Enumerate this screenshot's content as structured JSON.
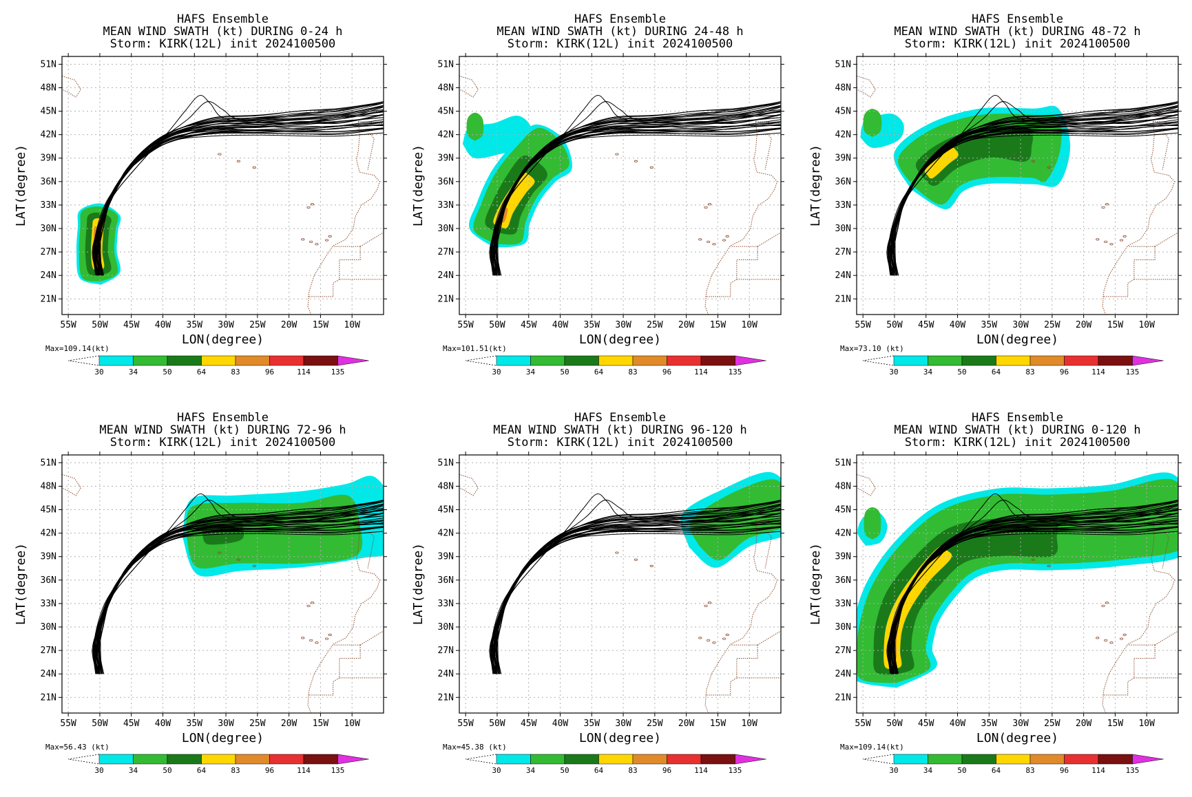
{
  "figure": {
    "axes": {
      "xlabel": "LON(degree)",
      "ylabel": "LAT(degree)",
      "xticks": [
        "55W",
        "50W",
        "45W",
        "40W",
        "35W",
        "30W",
        "25W",
        "20W",
        "15W",
        "10W"
      ],
      "yticks": [
        "51N",
        "48N",
        "45N",
        "42N",
        "39N",
        "36N",
        "33N",
        "30N",
        "27N",
        "24N",
        "21N"
      ],
      "lon_range": [
        -56,
        -5
      ],
      "lat_range": [
        19,
        52
      ]
    },
    "colorbar": {
      "levels": [
        "30",
        "34",
        "50",
        "64",
        "83",
        "96",
        "114",
        "135"
      ],
      "colors": [
        "#00e8e8",
        "#33bb33",
        "#1a7a1a",
        "#ffd700",
        "#e08a2a",
        "#e83030",
        "#7a1010",
        "#e030e0"
      ]
    },
    "panels": [
      {
        "title1": "HAFS Ensemble",
        "title2": "MEAN WIND SWATH (kt) DURING  0-24 h",
        "title3": "Storm: KIRK(12L) init 2024100500",
        "max_label": "Max=109.14(kt)"
      },
      {
        "title1": "HAFS Ensemble",
        "title2": "MEAN WIND SWATH (kt) DURING 24-48 h",
        "title3": "Storm: KIRK(12L) init 2024100500",
        "max_label": "Max=101.51(kt)"
      },
      {
        "title1": "HAFS Ensemble",
        "title2": "MEAN WIND SWATH (kt) DURING 48-72 h",
        "title3": "Storm: KIRK(12L) init 2024100500",
        "max_label": "Max=73.10 (kt)"
      },
      {
        "title1": "HAFS Ensemble",
        "title2": "MEAN WIND SWATH (kt) DURING 72-96 h",
        "title3": "Storm: KIRK(12L) init 2024100500",
        "max_label": "Max=56.43 (kt)"
      },
      {
        "title1": "HAFS Ensemble",
        "title2": "MEAN WIND SWATH (kt) DURING 96-120 h",
        "title3": "Storm: KIRK(12L) init 2024100500",
        "max_label": "Max=45.38 (kt)"
      },
      {
        "title1": "HAFS Ensemble",
        "title2": "MEAN WIND SWATH (kt) DURING 0-120 h",
        "title3": "Storm: KIRK(12L) init 2024100500",
        "max_label": "Max=109.14(kt)"
      }
    ],
    "track": [
      [
        -50,
        24
      ],
      [
        -50.5,
        27
      ],
      [
        -50,
        30
      ],
      [
        -48.5,
        33.5
      ],
      [
        -46,
        37
      ],
      [
        -42.5,
        40
      ],
      [
        -38,
        42
      ],
      [
        -32,
        43
      ],
      [
        -25,
        43.3
      ],
      [
        -18,
        43.5
      ],
      [
        -12,
        43.8
      ],
      [
        -5,
        44.5
      ]
    ],
    "track_outliers": [
      [
        [
          -50,
          24
        ],
        [
          -50.5,
          27
        ],
        [
          -50,
          30
        ],
        [
          -48,
          34
        ],
        [
          -44,
          38
        ],
        [
          -39.5,
          42
        ],
        [
          -36.5,
          45
        ],
        [
          -34.2,
          47
        ],
        [
          -32.5,
          46
        ],
        [
          -30,
          44
        ],
        [
          -22,
          43.5
        ],
        [
          -12,
          44
        ],
        [
          -5,
          45
        ]
      ],
      [
        [
          -50,
          24
        ],
        [
          -50.5,
          27
        ],
        [
          -50,
          30
        ],
        [
          -48,
          34
        ],
        [
          -44,
          38
        ],
        [
          -40,
          41.5
        ],
        [
          -36,
          44
        ],
        [
          -33,
          46.2
        ],
        [
          -30.5,
          45.2
        ],
        [
          -28,
          44
        ],
        [
          -20,
          43.5
        ],
        [
          -12,
          44
        ],
        [
          -5,
          45.5
        ]
      ]
    ],
    "swaths": [
      [
        {
          "level": 30,
          "center": [
            [
              -50,
              24
            ],
            [
              -50.5,
              27
            ],
            [
              -50.3,
              30
            ],
            [
              -50,
              32
            ]
          ],
          "lon_width": 3.2,
          "lat_pad": 1.2
        },
        {
          "level": 34,
          "center": [
            [
              -50,
              24
            ],
            [
              -50.5,
              27
            ],
            [
              -50.3,
              30
            ],
            [
              -50,
              32
            ]
          ],
          "lon_width": 2.8,
          "lat_pad": 0.8
        },
        {
          "level": 50,
          "center": [
            [
              -50,
              24.5
            ],
            [
              -50.5,
              27
            ],
            [
              -50.3,
              30
            ],
            [
              -50,
              31.5
            ]
          ],
          "lon_width": 1.8,
          "lat_pad": 0.5
        },
        {
          "level": 64,
          "center": [
            [
              -50.2,
              25
            ],
            [
              -50.5,
              27
            ],
            [
              -50.3,
              30
            ],
            [
              -50.1,
              31
            ]
          ],
          "lon_width": 0.9,
          "lat_pad": 0.3
        },
        {
          "level": 83,
          "center": [
            [
              -50.3,
              25.5
            ],
            [
              -50.5,
              27.5
            ],
            [
              -50.4,
              30
            ]
          ],
          "lon_width": 0.5,
          "lat_pad": 0.2
        },
        {
          "level": 96,
          "center": [
            [
              -50.4,
              27
            ],
            [
              -50.5,
              28.5
            ]
          ],
          "lon_width": 0.25,
          "lat_pad": 0.1
        }
      ],
      [
        {
          "level": 30,
          "center": [
            [
              -50,
              29
            ],
            [
              -49,
              32
            ],
            [
              -47,
              35.5
            ],
            [
              -44,
              38.5
            ],
            [
              -41,
              40.5
            ]
          ],
          "lon_width": 4.5,
          "lat_pad": 1.5
        },
        {
          "level": 30,
          "center": [
            [
              -54,
              41
            ],
            [
              -50,
              41.5
            ],
            [
              -46,
              42.5
            ]
          ],
          "lon_width": 2.5,
          "lat_pad": 1.2
        },
        {
          "level": 34,
          "center": [
            [
              -50,
              29
            ],
            [
              -49,
              32
            ],
            [
              -47,
              35.5
            ],
            [
              -44,
              38.5
            ],
            [
              -41,
              40.5
            ]
          ],
          "lon_width": 3.8,
          "lat_pad": 1.0
        },
        {
          "level": 34,
          "center": [
            [
              -53.5,
              42
            ],
            [
              -53.5,
              44
            ]
          ],
          "lon_width": 1.2,
          "lat_pad": 0.8
        },
        {
          "level": 50,
          "center": [
            [
              -49.5,
              30
            ],
            [
              -48.5,
              32.5
            ],
            [
              -46.5,
              35.5
            ],
            [
              -44,
              38
            ]
          ],
          "lon_width": 2.5,
          "lat_pad": 0.6
        },
        {
          "level": 64,
          "center": [
            [
              -49.5,
              30.5
            ],
            [
              -48.5,
              32.5
            ],
            [
              -46.5,
              35
            ],
            [
              -45,
              36.5
            ]
          ],
          "lon_width": 1.2,
          "lat_pad": 0.3
        },
        {
          "level": 83,
          "center": [
            [
              -49.3,
              31
            ],
            [
              -48.8,
              32.5
            ]
          ],
          "lon_width": 0.5,
          "lat_pad": 0.2
        }
      ],
      [
        {
          "level": 30,
          "center": [
            [
              -46,
              36
            ],
            [
              -42,
              39
            ],
            [
              -36,
              40.5
            ],
            [
              -28,
              40.5
            ],
            [
              -24,
              40.5
            ]
          ],
          "lon_width": 6.0,
          "lat_pad": 1.5
        },
        {
          "level": 30,
          "center": [
            [
              -54,
              42
            ],
            [
              -50,
              43
            ]
          ],
          "lon_width": 2.2,
          "lat_pad": 1.2
        },
        {
          "level": 34,
          "center": [
            [
              -46,
              36
            ],
            [
              -42,
              39
            ],
            [
              -36,
              40.5
            ],
            [
              -28,
              40.5
            ],
            [
              -25,
              40
            ]
          ],
          "lon_width": 5.0,
          "lat_pad": 1.0
        },
        {
          "level": 34,
          "center": [
            [
              -53.5,
              42.5
            ],
            [
              -53.5,
              44.5
            ]
          ],
          "lon_width": 1.3,
          "lat_pad": 0.8
        },
        {
          "level": 50,
          "center": [
            [
              -45,
              37
            ],
            [
              -41,
              39.5
            ],
            [
              -35,
              41
            ],
            [
              -29,
              40.5
            ]
          ],
          "lon_width": 2.4,
          "lat_pad": 0.6
        },
        {
          "level": 64,
          "center": [
            [
              -44.5,
              37
            ],
            [
              -42,
              38.8
            ],
            [
              -40.5,
              39.8
            ]
          ],
          "lon_width": 0.9,
          "lat_pad": 0.3
        }
      ],
      [
        {
          "level": 30,
          "center": [
            [
              -35,
              41.5
            ],
            [
              -28,
              42
            ],
            [
              -18,
              42.5
            ],
            [
              -10,
              43.5
            ],
            [
              -5,
              44.5
            ]
          ],
          "lon_width": 6.0,
          "lat_pad": 1.5
        },
        {
          "level": 34,
          "center": [
            [
              -35,
              41.5
            ],
            [
              -28,
              42
            ],
            [
              -18,
              42
            ],
            [
              -10,
              43
            ]
          ],
          "lon_width": 4.8,
          "lat_pad": 1.0
        },
        {
          "level": 50,
          "center": [
            [
              -33,
              42
            ],
            [
              -28,
              42.5
            ]
          ],
          "lon_width": 1.8,
          "lat_pad": 0.6
        }
      ],
      [
        {
          "level": 30,
          "center": [
            [
              -18,
              41
            ],
            [
              -12,
              44
            ],
            [
              -5,
              46
            ]
          ],
          "lon_width": 5.0,
          "lat_pad": 1.5
        },
        {
          "level": 34,
          "center": [
            [
              -17,
              41
            ],
            [
              -12,
              44
            ],
            [
              -5,
              46
            ]
          ],
          "lon_width": 3.8,
          "lat_pad": 1.0
        }
      ],
      [
        {
          "level": 30,
          "center": [
            [
              -50,
              24
            ],
            [
              -50.5,
              27
            ],
            [
              -50,
              30
            ],
            [
              -48.5,
              33.5
            ],
            [
              -45,
              37.5
            ],
            [
              -40,
              41
            ],
            [
              -33,
              42.5
            ],
            [
              -25,
              42.5
            ],
            [
              -15,
              43
            ],
            [
              -5,
              44.5
            ]
          ],
          "lon_width": 6.5,
          "lat_pad": 1.8
        },
        {
          "level": 30,
          "center": [
            [
              -54,
              41.5
            ],
            [
              -53,
              43.5
            ]
          ],
          "lon_width": 2.0,
          "lat_pad": 1.2
        },
        {
          "level": 34,
          "center": [
            [
              -50,
              24
            ],
            [
              -50.5,
              27
            ],
            [
              -50,
              30
            ],
            [
              -48.5,
              33.5
            ],
            [
              -45,
              37.5
            ],
            [
              -40,
              41
            ],
            [
              -33,
              42.5
            ],
            [
              -25,
              42.5
            ],
            [
              -15,
              43
            ],
            [
              -5,
              44.5
            ]
          ],
          "lon_width": 5.5,
          "lat_pad": 1.2
        },
        {
          "level": 34,
          "center": [
            [
              -53.5,
              42
            ],
            [
              -53.5,
              44.5
            ]
          ],
          "lon_width": 1.2,
          "lat_pad": 0.8
        },
        {
          "level": 50,
          "center": [
            [
              -50,
              24.5
            ],
            [
              -50.3,
              27
            ],
            [
              -50,
              30
            ],
            [
              -48.5,
              33.5
            ],
            [
              -45,
              37
            ],
            [
              -40,
              40.5
            ],
            [
              -33,
              41.5
            ],
            [
              -25,
              41.5
            ]
          ],
          "lon_width": 3.0,
          "lat_pad": 0.6
        },
        {
          "level": 64,
          "center": [
            [
              -50.2,
              25
            ],
            [
              -50.4,
              27
            ],
            [
              -50,
              30
            ],
            [
              -48.5,
              33
            ],
            [
              -45.5,
              36.5
            ],
            [
              -42,
              39.5
            ]
          ],
          "lon_width": 1.3,
          "lat_pad": 0.4
        },
        {
          "level": 83,
          "center": [
            [
              -50.2,
              26
            ],
            [
              -50.2,
              28
            ],
            [
              -50,
              30
            ]
          ],
          "lon_width": 0.5,
          "lat_pad": 0.2
        }
      ]
    ]
  }
}
